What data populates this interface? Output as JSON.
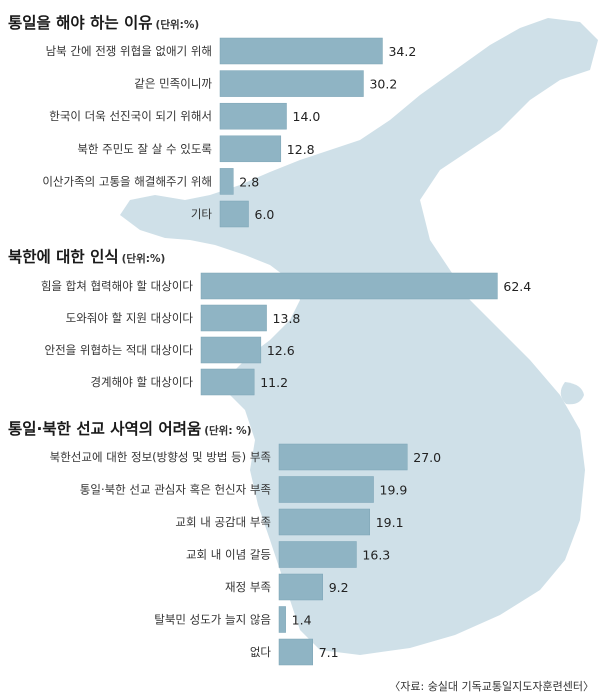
{
  "colors": {
    "bar": "#8fb4c4",
    "bar_edge": "#7aa3b5",
    "map": "#cfe0e8",
    "text": "#222222"
  },
  "chart_data": [
    {
      "type": "bar",
      "orientation": "horizontal",
      "title": "통일을 해야 하는 이유",
      "unit": "(단위:%)",
      "categories": [
        "남북 간에 전쟁 위협을 없애기 위해",
        "같은 민족이니까",
        "한국이 더욱 선진국이 되기 위해서",
        "북한 주민도 잘 살 수 있도록",
        "이산가족의 고통을 해결해주기 위해",
        "기타"
      ],
      "values": [
        34.2,
        30.2,
        14.0,
        12.8,
        2.8,
        6.0
      ],
      "value_labels": [
        "34.2",
        "30.2",
        "14.0",
        "12.8",
        "2.8",
        "6.0"
      ]
    },
    {
      "type": "bar",
      "orientation": "horizontal",
      "title": "북한에 대한 인식",
      "unit": "(단위:%)",
      "categories": [
        "힘을 합쳐 협력해야 할 대상이다",
        "도와줘야 할 지원 대상이다",
        "안전을 위협하는 적대 대상이다",
        "경계해야 할 대상이다"
      ],
      "values": [
        62.4,
        13.8,
        12.6,
        11.2
      ],
      "value_labels": [
        "62.4",
        "13.8",
        "12.6",
        "11.2"
      ]
    },
    {
      "type": "bar",
      "orientation": "horizontal",
      "title": "통일·북한 선교 사역의 어려움",
      "unit": "(단위: %)",
      "categories": [
        "북한선교에 대한 정보(방향성 및 방법 등) 부족",
        "통일·북한 선교 관심자 혹은 헌신자 부족",
        "교회 내 공감대 부족",
        "교회 내 이념 갈등",
        "재정 부족",
        "탈북민 성도가 늘지 않음",
        "없다"
      ],
      "values": [
        27.0,
        19.9,
        19.1,
        16.3,
        9.2,
        1.4,
        7.1
      ],
      "value_labels": [
        "27.0",
        "19.9",
        "19.1",
        "16.3",
        "9.2",
        "1.4",
        "7.1"
      ]
    }
  ],
  "source": "〈자료: 숭실대 기독교통일지도자훈련센터〉"
}
